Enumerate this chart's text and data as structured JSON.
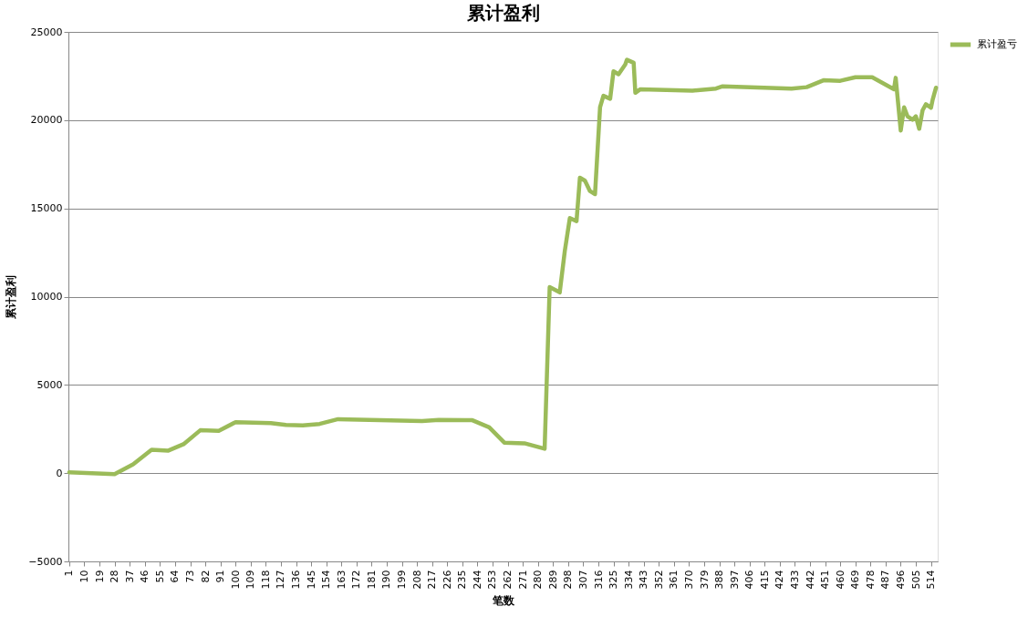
{
  "chart_data": {
    "type": "line",
    "title": "累计盈利",
    "xlabel": "笔数",
    "ylabel": "累计盈利",
    "xlim": [
      0.5,
      518
    ],
    "xticks": [
      1,
      10,
      19,
      28,
      37,
      46,
      55,
      64,
      73,
      82,
      91,
      100,
      109,
      118,
      127,
      136,
      145,
      154,
      163,
      172,
      181,
      190,
      199,
      208,
      217,
      226,
      235,
      244,
      253,
      262,
      271,
      280,
      289,
      298,
      307,
      316,
      325,
      334,
      343,
      352,
      361,
      370,
      379,
      388,
      397,
      406,
      415,
      424,
      433,
      442,
      451,
      460,
      469,
      478,
      487,
      496,
      505,
      514
    ],
    "ylim": [
      -5000,
      25000
    ],
    "yticks": [
      -5000,
      0,
      5000,
      10000,
      15000,
      20000,
      25000
    ],
    "grid": "y",
    "legend": "right",
    "marker": "none",
    "line_style": "solid",
    "series": [
      {
        "name": "累计盈亏",
        "color": "#9bbb59",
        "x": [
          1,
          28,
          39,
          50,
          60,
          69,
          79,
          90,
          100,
          121,
          130,
          140,
          150,
          161,
          211,
          221,
          241,
          251,
          260,
          272,
          284,
          287,
          293,
          296,
          299,
          303,
          305,
          308,
          311,
          314,
          317,
          319,
          323,
          325,
          328,
          332,
          333,
          337,
          338,
          341,
          372,
          386,
          390,
          431,
          440,
          450,
          460,
          469,
          479,
          492,
          493,
          496,
          498,
          500,
          503,
          505,
          507,
          509,
          511,
          514,
          515,
          517
        ],
        "values": [
          50,
          -50,
          500,
          1320,
          1280,
          1640,
          2430,
          2400,
          2890,
          2840,
          2730,
          2710,
          2790,
          3060,
          2950,
          3020,
          3000,
          2600,
          1730,
          1690,
          1380,
          10540,
          10240,
          12580,
          14450,
          14280,
          16740,
          16570,
          15980,
          15810,
          20730,
          21380,
          21210,
          22770,
          22600,
          23150,
          23420,
          23250,
          21550,
          21750,
          21670,
          21790,
          21920,
          21790,
          21870,
          22260,
          22230,
          22430,
          22430,
          21750,
          22400,
          19410,
          20730,
          20220,
          20020,
          20220,
          19510,
          20560,
          20900,
          20700,
          21160,
          21840
        ]
      }
    ]
  }
}
